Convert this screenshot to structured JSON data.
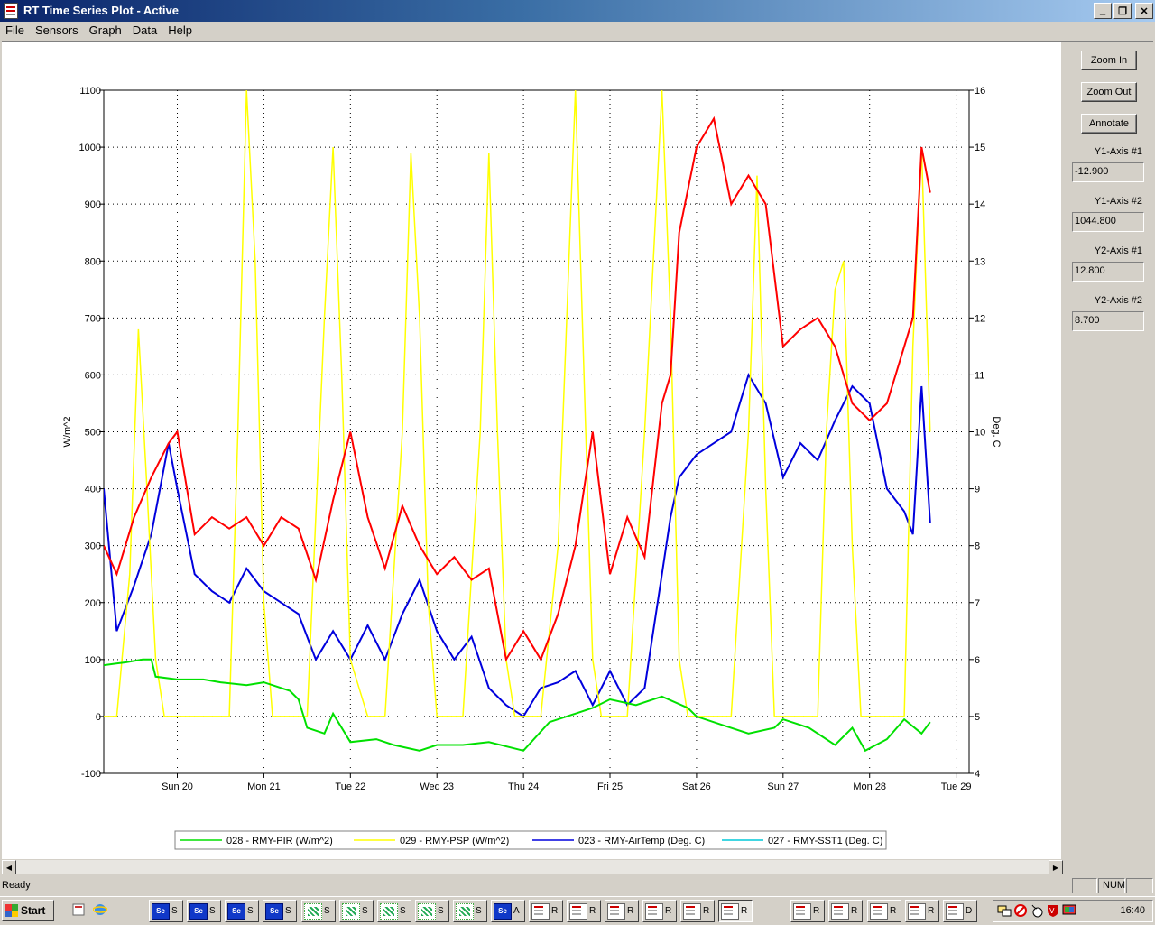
{
  "window": {
    "title": "RT Time Series Plot - Active",
    "minimize": "_",
    "restore": "❐",
    "close": "✕"
  },
  "menu": [
    "File",
    "Sensors",
    "Graph",
    "Data",
    "Help"
  ],
  "side_panel": {
    "zoom_in": "Zoom In",
    "zoom_out": "Zoom Out",
    "annotate": "Annotate",
    "y1_axis_1_label": "Y1-Axis #1",
    "y1_axis_1_value": "-12.900",
    "y1_axis_2_label": "Y1-Axis #2",
    "y1_axis_2_value": "1044.800",
    "y2_axis_1_label": "Y2-Axis #1",
    "y2_axis_1_value": "12.800",
    "y2_axis_2_label": "Y2-Axis #2",
    "y2_axis_2_value": "8.700"
  },
  "status": {
    "text": "Ready",
    "num": "NUM"
  },
  "taskbar": {
    "start": "Start",
    "buttons": [
      {
        "icon": "sc",
        "label": "S"
      },
      {
        "icon": "sc",
        "label": "S"
      },
      {
        "icon": "sc",
        "label": "S"
      },
      {
        "icon": "sc",
        "label": "S"
      },
      {
        "icon": "net",
        "label": "S"
      },
      {
        "icon": "net",
        "label": "S"
      },
      {
        "icon": "net",
        "label": "S"
      },
      {
        "icon": "net",
        "label": "S"
      },
      {
        "icon": "net",
        "label": "S"
      },
      {
        "icon": "sc",
        "label": "A"
      },
      {
        "icon": "doc",
        "label": "R"
      },
      {
        "icon": "doc",
        "label": "R"
      },
      {
        "icon": "doc",
        "label": "R"
      },
      {
        "icon": "doc",
        "label": "R"
      },
      {
        "icon": "doc",
        "label": "R"
      },
      {
        "icon": "doc",
        "label": "R",
        "pressed": true
      },
      {
        "icon": "doc",
        "label": "R"
      },
      {
        "icon": "doc",
        "label": "R"
      },
      {
        "icon": "doc",
        "label": "R"
      },
      {
        "icon": "doc",
        "label": "R"
      },
      {
        "icon": "doc",
        "label": "D"
      }
    ],
    "clock": "16:40"
  },
  "chart_data": {
    "type": "line",
    "title": "",
    "ylabel": "W/m^2",
    "y2label": "Deg. C",
    "ylim": [
      -100,
      1100
    ],
    "y2lim": [
      4,
      16
    ],
    "yticks": [
      -100,
      0,
      100,
      200,
      300,
      400,
      500,
      600,
      700,
      800,
      900,
      1000,
      1100
    ],
    "y2ticks": [
      4,
      5,
      6,
      7,
      8,
      9,
      10,
      11,
      12,
      13,
      14,
      15,
      16
    ],
    "xlim": [
      19.15,
      29.15
    ],
    "xticks": [
      {
        "label": "Sun 20",
        "x": 20
      },
      {
        "label": "Mon 21",
        "x": 21
      },
      {
        "label": "Tue 22",
        "x": 22
      },
      {
        "label": "Wed 23",
        "x": 23
      },
      {
        "label": "Thu 24",
        "x": 24
      },
      {
        "label": "Fri 25",
        "x": 25
      },
      {
        "label": "Sat 26",
        "x": 26
      },
      {
        "label": "Sun 27",
        "x": 27
      },
      {
        "label": "Mon 28",
        "x": 28
      },
      {
        "label": "Tue 29",
        "x": 29
      }
    ],
    "grid": true,
    "legend_position": "bottom",
    "series": [
      {
        "name": "028 - RMY-PIR (W/m^2)",
        "color": "#00e000",
        "axis": "y1",
        "x": [
          19.15,
          19.4,
          19.6,
          19.7,
          19.75,
          20.0,
          20.3,
          20.5,
          20.8,
          21.0,
          21.3,
          21.4,
          21.5,
          21.7,
          21.8,
          22.0,
          22.3,
          22.5,
          22.8,
          23.0,
          23.3,
          23.6,
          24.0,
          24.3,
          24.6,
          24.8,
          25.0,
          25.3,
          25.6,
          25.9,
          26.0,
          26.3,
          26.6,
          26.9,
          27.0,
          27.3,
          27.6,
          27.8,
          27.95,
          28.2,
          28.4,
          28.6,
          28.7
        ],
        "y": [
          90,
          95,
          100,
          100,
          70,
          65,
          65,
          60,
          55,
          60,
          45,
          30,
          -20,
          -30,
          5,
          -45,
          -40,
          -50,
          -60,
          -50,
          -50,
          -45,
          -60,
          -10,
          5,
          15,
          30,
          20,
          35,
          15,
          0,
          -15,
          -30,
          -20,
          -5,
          -20,
          -50,
          -20,
          -60,
          -40,
          -5,
          -30,
          -10
        ]
      },
      {
        "name": "029 - RMY-PSP (W/m^2)",
        "color": "#ffff00",
        "axis": "y1",
        "x": [
          19.15,
          19.3,
          19.45,
          19.55,
          19.65,
          19.75,
          19.85,
          19.9,
          20.0,
          20.2,
          20.4,
          20.6,
          20.7,
          20.8,
          20.9,
          21.0,
          21.1,
          21.2,
          21.3,
          21.5,
          21.7,
          21.8,
          21.9,
          22.0,
          22.2,
          22.4,
          22.6,
          22.7,
          22.8,
          22.9,
          23.0,
          23.2,
          23.3,
          23.5,
          23.6,
          23.7,
          23.8,
          23.9,
          24.0,
          24.2,
          24.4,
          24.6,
          24.7,
          24.8,
          24.9,
          25.0,
          25.2,
          25.4,
          25.6,
          25.7,
          25.8,
          25.9,
          26.0,
          26.2,
          26.4,
          26.6,
          26.7,
          26.8,
          26.9,
          27.0,
          27.2,
          27.4,
          27.5,
          27.6,
          27.7,
          27.8,
          27.9,
          28.0,
          28.2,
          28.4,
          28.5,
          28.6,
          28.7
        ],
        "y": [
          0,
          0,
          250,
          680,
          400,
          100,
          0,
          0,
          0,
          0,
          0,
          0,
          500,
          1100,
          800,
          200,
          0,
          0,
          0,
          0,
          700,
          1000,
          600,
          100,
          0,
          0,
          500,
          990,
          700,
          200,
          0,
          0,
          0,
          500,
          990,
          500,
          100,
          0,
          0,
          0,
          300,
          1100,
          600,
          100,
          0,
          0,
          0,
          500,
          1100,
          700,
          100,
          0,
          0,
          0,
          0,
          500,
          950,
          400,
          0,
          0,
          0,
          0,
          500,
          750,
          800,
          300,
          0,
          0,
          0,
          0,
          650,
          1000,
          500
        ]
      },
      {
        "name": "023 - RMY-AirTemp (Deg. C)",
        "color": "#0000dd",
        "axis": "y2",
        "x": [
          19.15,
          19.3,
          19.5,
          19.7,
          19.9,
          20.0,
          20.2,
          20.4,
          20.6,
          20.8,
          21.0,
          21.2,
          21.4,
          21.6,
          21.8,
          22.0,
          22.2,
          22.4,
          22.6,
          22.8,
          23.0,
          23.2,
          23.4,
          23.6,
          23.8,
          24.0,
          24.2,
          24.4,
          24.6,
          24.8,
          25.0,
          25.2,
          25.4,
          25.6,
          25.7,
          25.8,
          26.0,
          26.2,
          26.4,
          26.6,
          26.8,
          27.0,
          27.2,
          27.4,
          27.6,
          27.8,
          28.0,
          28.2,
          28.4,
          28.5,
          28.6,
          28.7
        ],
        "y": [
          9.0,
          6.5,
          7.3,
          8.2,
          9.8,
          9.0,
          7.5,
          7.2,
          7.0,
          7.6,
          7.2,
          7.0,
          6.8,
          6.0,
          6.5,
          6.0,
          6.6,
          6.0,
          6.8,
          7.4,
          6.5,
          6.0,
          6.4,
          5.5,
          5.2,
          5.0,
          5.5,
          5.6,
          5.8,
          5.2,
          5.8,
          5.2,
          5.5,
          7.5,
          8.5,
          9.2,
          9.6,
          9.8,
          10.0,
          11.0,
          10.5,
          9.2,
          9.8,
          9.5,
          10.2,
          10.8,
          10.5,
          9.0,
          8.6,
          8.2,
          10.8,
          8.4
        ]
      },
      {
        "name": "027 - RMY-SST1 (Deg. C)",
        "color": "#00c8d8",
        "axis": "y2",
        "x": [],
        "y": []
      },
      {
        "name": "",
        "color": "#ff0000",
        "axis": "y2",
        "x": [
          19.15,
          19.3,
          19.5,
          19.7,
          19.9,
          20.0,
          20.2,
          20.4,
          20.6,
          20.8,
          21.0,
          21.2,
          21.4,
          21.6,
          21.8,
          22.0,
          22.2,
          22.4,
          22.6,
          22.8,
          23.0,
          23.2,
          23.4,
          23.6,
          23.8,
          24.0,
          24.2,
          24.4,
          24.6,
          24.8,
          25.0,
          25.2,
          25.4,
          25.6,
          25.7,
          25.8,
          26.0,
          26.2,
          26.4,
          26.6,
          26.8,
          27.0,
          27.2,
          27.4,
          27.6,
          27.8,
          28.0,
          28.2,
          28.4,
          28.5,
          28.6,
          28.7
        ],
        "y": [
          8.0,
          7.5,
          8.5,
          9.2,
          9.8,
          10.0,
          8.2,
          8.5,
          8.3,
          8.5,
          8.0,
          8.5,
          8.3,
          7.4,
          8.8,
          10.0,
          8.5,
          7.6,
          8.7,
          8.0,
          7.5,
          7.8,
          7.4,
          7.6,
          6.0,
          6.5,
          6.0,
          6.8,
          8.0,
          10.0,
          7.5,
          8.5,
          7.8,
          10.5,
          11.0,
          13.5,
          15.0,
          15.5,
          14.0,
          14.5,
          14.0,
          11.5,
          11.8,
          12.0,
          11.5,
          10.5,
          10.2,
          10.5,
          11.5,
          12.0,
          15.0,
          14.2
        ]
      }
    ]
  }
}
